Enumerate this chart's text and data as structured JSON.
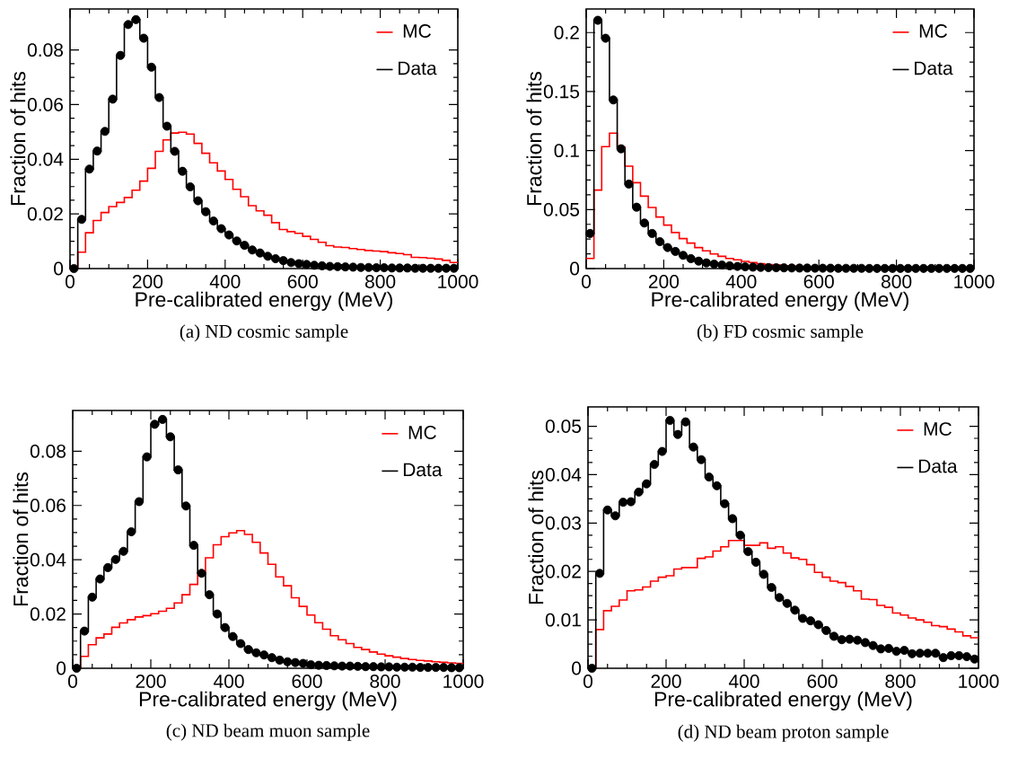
{
  "chart_data": [
    {
      "type": "histogram",
      "title": "(a) ND cosmic sample",
      "xlabel": "Pre-calibrated energy (MeV)",
      "ylabel": "Fraction of hits",
      "bins": [
        0,
        20,
        40,
        60,
        80,
        100,
        120,
        140,
        160,
        180,
        200,
        220,
        240,
        260,
        280,
        300,
        320,
        340,
        360,
        380,
        400,
        420,
        440,
        460,
        480,
        500,
        520,
        540,
        560,
        580,
        600,
        620,
        640,
        660,
        680,
        700,
        720,
        740,
        760,
        780,
        800,
        820,
        840,
        860,
        880,
        900,
        920,
        940,
        960,
        980,
        1000
      ],
      "xlim": [
        0,
        1000
      ],
      "xticks": [
        0,
        200,
        400,
        600,
        800,
        1000
      ],
      "ylim": [
        0,
        0.095
      ],
      "yticks": [
        0,
        0.02,
        0.04,
        0.06,
        0.08
      ],
      "legend": "top right",
      "series": [
        {
          "name": "MC",
          "color": "#ff0000",
          "marker": "none",
          "values": [
            0,
            0.006,
            0.0131,
            0.0176,
            0.0205,
            0.0227,
            0.0242,
            0.026,
            0.0287,
            0.032,
            0.0367,
            0.0429,
            0.0471,
            0.0496,
            0.0499,
            0.0492,
            0.0458,
            0.0422,
            0.0387,
            0.0357,
            0.0326,
            0.029,
            0.0263,
            0.023,
            0.0211,
            0.0195,
            0.0168,
            0.0143,
            0.0135,
            0.0129,
            0.0118,
            0.0107,
            0.0096,
            0.0084,
            0.0079,
            0.0077,
            0.0073,
            0.007,
            0.0066,
            0.0064,
            0.0062,
            0.0058,
            0.0055,
            0.0051,
            0.0041,
            0.004,
            0.0038,
            0.0035,
            0.003,
            0.0022
          ]
        },
        {
          "name": "Data",
          "type": "step",
          "color": "#000000",
          "marker": "circle",
          "x": [
            10,
            30,
            50,
            70,
            90,
            110,
            130,
            150,
            170,
            190,
            210,
            230,
            250,
            270,
            290,
            310,
            330,
            350,
            370,
            390,
            410,
            430,
            450,
            470,
            490,
            510,
            530,
            550,
            570,
            590,
            610,
            630,
            650,
            670,
            690,
            710,
            730,
            750,
            770,
            790,
            810,
            830,
            850,
            870,
            890,
            910,
            930,
            950,
            970,
            990
          ],
          "values": [
            0,
            0.018,
            0.0364,
            0.043,
            0.0502,
            0.062,
            0.078,
            0.0893,
            0.0911,
            0.0843,
            0.0737,
            0.0626,
            0.0521,
            0.0429,
            0.0356,
            0.0299,
            0.0248,
            0.0208,
            0.0174,
            0.0146,
            0.0123,
            0.0101,
            0.0085,
            0.0068,
            0.0057,
            0.0045,
            0.0036,
            0.0029,
            0.0022,
            0.0018,
            0.0015,
            0.0012,
            0.001,
            0.0008,
            0.0007,
            0.0006,
            0.0005,
            0.0004,
            0.0004,
            0.0003,
            0.0003,
            0.0002,
            0.0002,
            0.0002,
            0.0001,
            0.0001,
            0.0001,
            0.0001,
            0.0001,
            0.0001
          ]
        }
      ]
    },
    {
      "type": "histogram",
      "title": "(b) FD cosmic sample",
      "xlabel": "Pre-calibrated energy (MeV)",
      "ylabel": "Fraction of hits",
      "bins": [
        0,
        20,
        40,
        60,
        80,
        100,
        120,
        140,
        160,
        180,
        200,
        220,
        240,
        260,
        280,
        300,
        320,
        340,
        360,
        380,
        400,
        420,
        440,
        460,
        480,
        500,
        520,
        540,
        560,
        580,
        600,
        620,
        640,
        660,
        680,
        700,
        720,
        740,
        760,
        780,
        800,
        820,
        840,
        860,
        880,
        900,
        920,
        940,
        960,
        980,
        1000
      ],
      "xlim": [
        0,
        1000
      ],
      "xticks": [
        0,
        200,
        400,
        600,
        800,
        1000
      ],
      "ylim": [
        0,
        0.22
      ],
      "yticks": [
        0,
        0.05,
        0.1,
        0.15,
        0.2
      ],
      "legend": "top right",
      "series": [
        {
          "name": "MC",
          "color": "#ff0000",
          "marker": "none",
          "values": [
            0.0086,
            0.0665,
            0.1033,
            0.1147,
            0.103,
            0.0868,
            0.0728,
            0.0614,
            0.0518,
            0.0437,
            0.0368,
            0.0305,
            0.0254,
            0.0216,
            0.0178,
            0.015,
            0.0124,
            0.0104,
            0.0086,
            0.0074,
            0.0061,
            0.0051,
            0.0041,
            0.0033,
            0.0028,
            0.0024,
            0.002,
            0.0017,
            0.0014,
            0.0012,
            0.001,
            0.0009,
            0.0008,
            0.0007,
            0.0006,
            0.0005,
            0.0005,
            0.0004,
            0.0004,
            0.0003,
            0.0003,
            0.0003,
            0.0002,
            0.0002,
            0.0002,
            0.0002,
            0.0001,
            0.0001,
            0.0001,
            0.0001
          ]
        },
        {
          "name": "Data",
          "type": "step",
          "color": "#000000",
          "marker": "circle",
          "x": [
            10,
            30,
            50,
            70,
            90,
            110,
            130,
            150,
            170,
            190,
            210,
            230,
            250,
            270,
            290,
            310,
            330,
            350,
            370,
            390,
            410,
            430,
            450,
            470,
            490,
            510,
            530,
            550,
            570,
            590,
            610,
            630,
            650,
            670,
            690,
            710,
            730,
            750,
            770,
            790,
            810,
            830,
            850,
            870,
            890,
            910,
            930,
            950,
            970,
            990
          ],
          "values": [
            0.0297,
            0.2104,
            0.1952,
            0.1429,
            0.1015,
            0.0716,
            0.052,
            0.0386,
            0.0297,
            0.0228,
            0.0178,
            0.0145,
            0.0112,
            0.0084,
            0.0063,
            0.0048,
            0.0038,
            0.003,
            0.0023,
            0.0018,
            0.0015,
            0.0012,
            0.001,
            0.0008,
            0.0007,
            0.0006,
            0.0005,
            0.0004,
            0.0004,
            0.0003,
            0.0003,
            0.0003,
            0.0002,
            0.0002,
            0.0002,
            0.0002,
            0.0001,
            0.0001,
            0.0001,
            0.0001,
            0.0001,
            0.0001,
            0.0001,
            0.0001,
            0.0001,
            0.0001,
            0.0001,
            0.0001,
            0.0001,
            0.0001
          ]
        }
      ]
    },
    {
      "type": "histogram",
      "title": "(c) ND beam muon sample",
      "xlabel": "Pre-calibrated energy (MeV)",
      "ylabel": "Fraction of hits",
      "bins": [
        0,
        20,
        40,
        60,
        80,
        100,
        120,
        140,
        160,
        180,
        200,
        220,
        240,
        260,
        280,
        300,
        320,
        340,
        360,
        380,
        400,
        420,
        440,
        460,
        480,
        500,
        520,
        540,
        560,
        580,
        600,
        620,
        640,
        660,
        680,
        700,
        720,
        740,
        760,
        780,
        800,
        820,
        840,
        860,
        880,
        900,
        920,
        940,
        960,
        980,
        1000
      ],
      "xlim": [
        0,
        1000
      ],
      "xticks": [
        0,
        200,
        400,
        600,
        800,
        1000
      ],
      "ylim": [
        0,
        0.095
      ],
      "yticks": [
        0,
        0.02,
        0.04,
        0.06,
        0.08
      ],
      "legend": "top right",
      "series": [
        {
          "name": "MC",
          "color": "#ff0000",
          "marker": "none",
          "values": [
            0,
            0.0044,
            0.0087,
            0.0112,
            0.0126,
            0.0151,
            0.0167,
            0.0179,
            0.0189,
            0.0194,
            0.0201,
            0.021,
            0.0221,
            0.0241,
            0.0271,
            0.0309,
            0.0352,
            0.0407,
            0.0455,
            0.0485,
            0.0499,
            0.0507,
            0.0493,
            0.0464,
            0.0425,
            0.0383,
            0.0337,
            0.0304,
            0.026,
            0.0228,
            0.0196,
            0.0168,
            0.0144,
            0.012,
            0.0105,
            0.0091,
            0.0077,
            0.0069,
            0.006,
            0.0052,
            0.0046,
            0.0041,
            0.0036,
            0.0032,
            0.0029,
            0.0027,
            0.0024,
            0.0022,
            0.002,
            0.0018
          ]
        },
        {
          "name": "Data",
          "type": "step",
          "color": "#000000",
          "marker": "circle",
          "x": [
            10,
            30,
            50,
            70,
            90,
            110,
            130,
            150,
            170,
            190,
            210,
            230,
            250,
            270,
            290,
            310,
            330,
            350,
            370,
            390,
            410,
            430,
            450,
            470,
            490,
            510,
            530,
            550,
            570,
            590,
            610,
            630,
            650,
            670,
            690,
            710,
            730,
            750,
            770,
            790,
            810,
            830,
            850,
            870,
            890,
            910,
            930,
            950,
            970,
            990
          ],
          "values": [
            0,
            0.0137,
            0.0262,
            0.0329,
            0.0371,
            0.0401,
            0.0431,
            0.0503,
            0.0614,
            0.0779,
            0.0899,
            0.0917,
            0.0853,
            0.0731,
            0.0598,
            0.0453,
            0.035,
            0.0271,
            0.02,
            0.015,
            0.0117,
            0.0091,
            0.0069,
            0.0057,
            0.0049,
            0.0039,
            0.003,
            0.0024,
            0.0021,
            0.0018,
            0.0013,
            0.0011,
            0.001,
            0.0009,
            0.0008,
            0.0008,
            0.0007,
            0.0006,
            0.0006,
            0.0005,
            0.0005,
            0.0004,
            0.0004,
            0.0004,
            0.0003,
            0.0003,
            0.0003,
            0.0003,
            0.0002,
            0.0002
          ]
        }
      ]
    },
    {
      "type": "histogram",
      "title": "(d) ND beam proton sample",
      "xlabel": "Pre-calibrated energy (MeV)",
      "ylabel": "Fraction of hits",
      "bins": [
        0,
        20,
        40,
        60,
        80,
        100,
        120,
        140,
        160,
        180,
        200,
        220,
        240,
        260,
        280,
        300,
        320,
        340,
        360,
        380,
        400,
        420,
        440,
        460,
        480,
        500,
        520,
        540,
        560,
        580,
        600,
        620,
        640,
        660,
        680,
        700,
        720,
        740,
        760,
        780,
        800,
        820,
        840,
        860,
        880,
        900,
        920,
        940,
        960,
        980,
        1000
      ],
      "xlim": [
        0,
        1000
      ],
      "xticks": [
        0,
        200,
        400,
        600,
        800,
        1000
      ],
      "ylim": [
        0,
        0.054
      ],
      "yticks": [
        0,
        0.01,
        0.02,
        0.03,
        0.04,
        0.05
      ],
      "legend": "top right",
      "series": [
        {
          "name": "MC",
          "color": "#ff0000",
          "marker": "none",
          "values": [
            0,
            0.008,
            0.0119,
            0.0128,
            0.0141,
            0.016,
            0.0162,
            0.0168,
            0.018,
            0.0188,
            0.0191,
            0.0205,
            0.0208,
            0.0208,
            0.0227,
            0.023,
            0.0242,
            0.0251,
            0.0264,
            0.0264,
            0.0254,
            0.0254,
            0.0259,
            0.0248,
            0.0251,
            0.0238,
            0.0228,
            0.0225,
            0.0214,
            0.0198,
            0.0188,
            0.018,
            0.0177,
            0.0169,
            0.016,
            0.0143,
            0.0142,
            0.013,
            0.0126,
            0.0114,
            0.011,
            0.0104,
            0.01,
            0.0095,
            0.0088,
            0.0086,
            0.0081,
            0.0075,
            0.0067,
            0.0063
          ]
        },
        {
          "name": "Data",
          "type": "step",
          "color": "#000000",
          "marker": "circle",
          "x": [
            10,
            30,
            50,
            70,
            90,
            110,
            130,
            150,
            170,
            190,
            210,
            230,
            250,
            270,
            290,
            310,
            330,
            350,
            370,
            390,
            410,
            430,
            450,
            470,
            490,
            510,
            530,
            550,
            570,
            590,
            610,
            630,
            650,
            670,
            690,
            710,
            730,
            750,
            770,
            790,
            810,
            830,
            850,
            870,
            890,
            910,
            930,
            950,
            970,
            990
          ],
          "values": [
            0,
            0.0196,
            0.0327,
            0.0315,
            0.0343,
            0.0344,
            0.0364,
            0.0381,
            0.0421,
            0.0448,
            0.0512,
            0.0483,
            0.0509,
            0.0457,
            0.0431,
            0.0395,
            0.0377,
            0.034,
            0.0309,
            0.0275,
            0.0241,
            0.0219,
            0.0194,
            0.0167,
            0.0146,
            0.0134,
            0.012,
            0.0103,
            0.0098,
            0.009,
            0.0078,
            0.0066,
            0.0059,
            0.006,
            0.0058,
            0.0053,
            0.0047,
            0.004,
            0.0041,
            0.0035,
            0.0037,
            0.003,
            0.0031,
            0.0031,
            0.0031,
            0.0022,
            0.0026,
            0.0026,
            0.0024,
            0.0019
          ]
        }
      ]
    }
  ]
}
